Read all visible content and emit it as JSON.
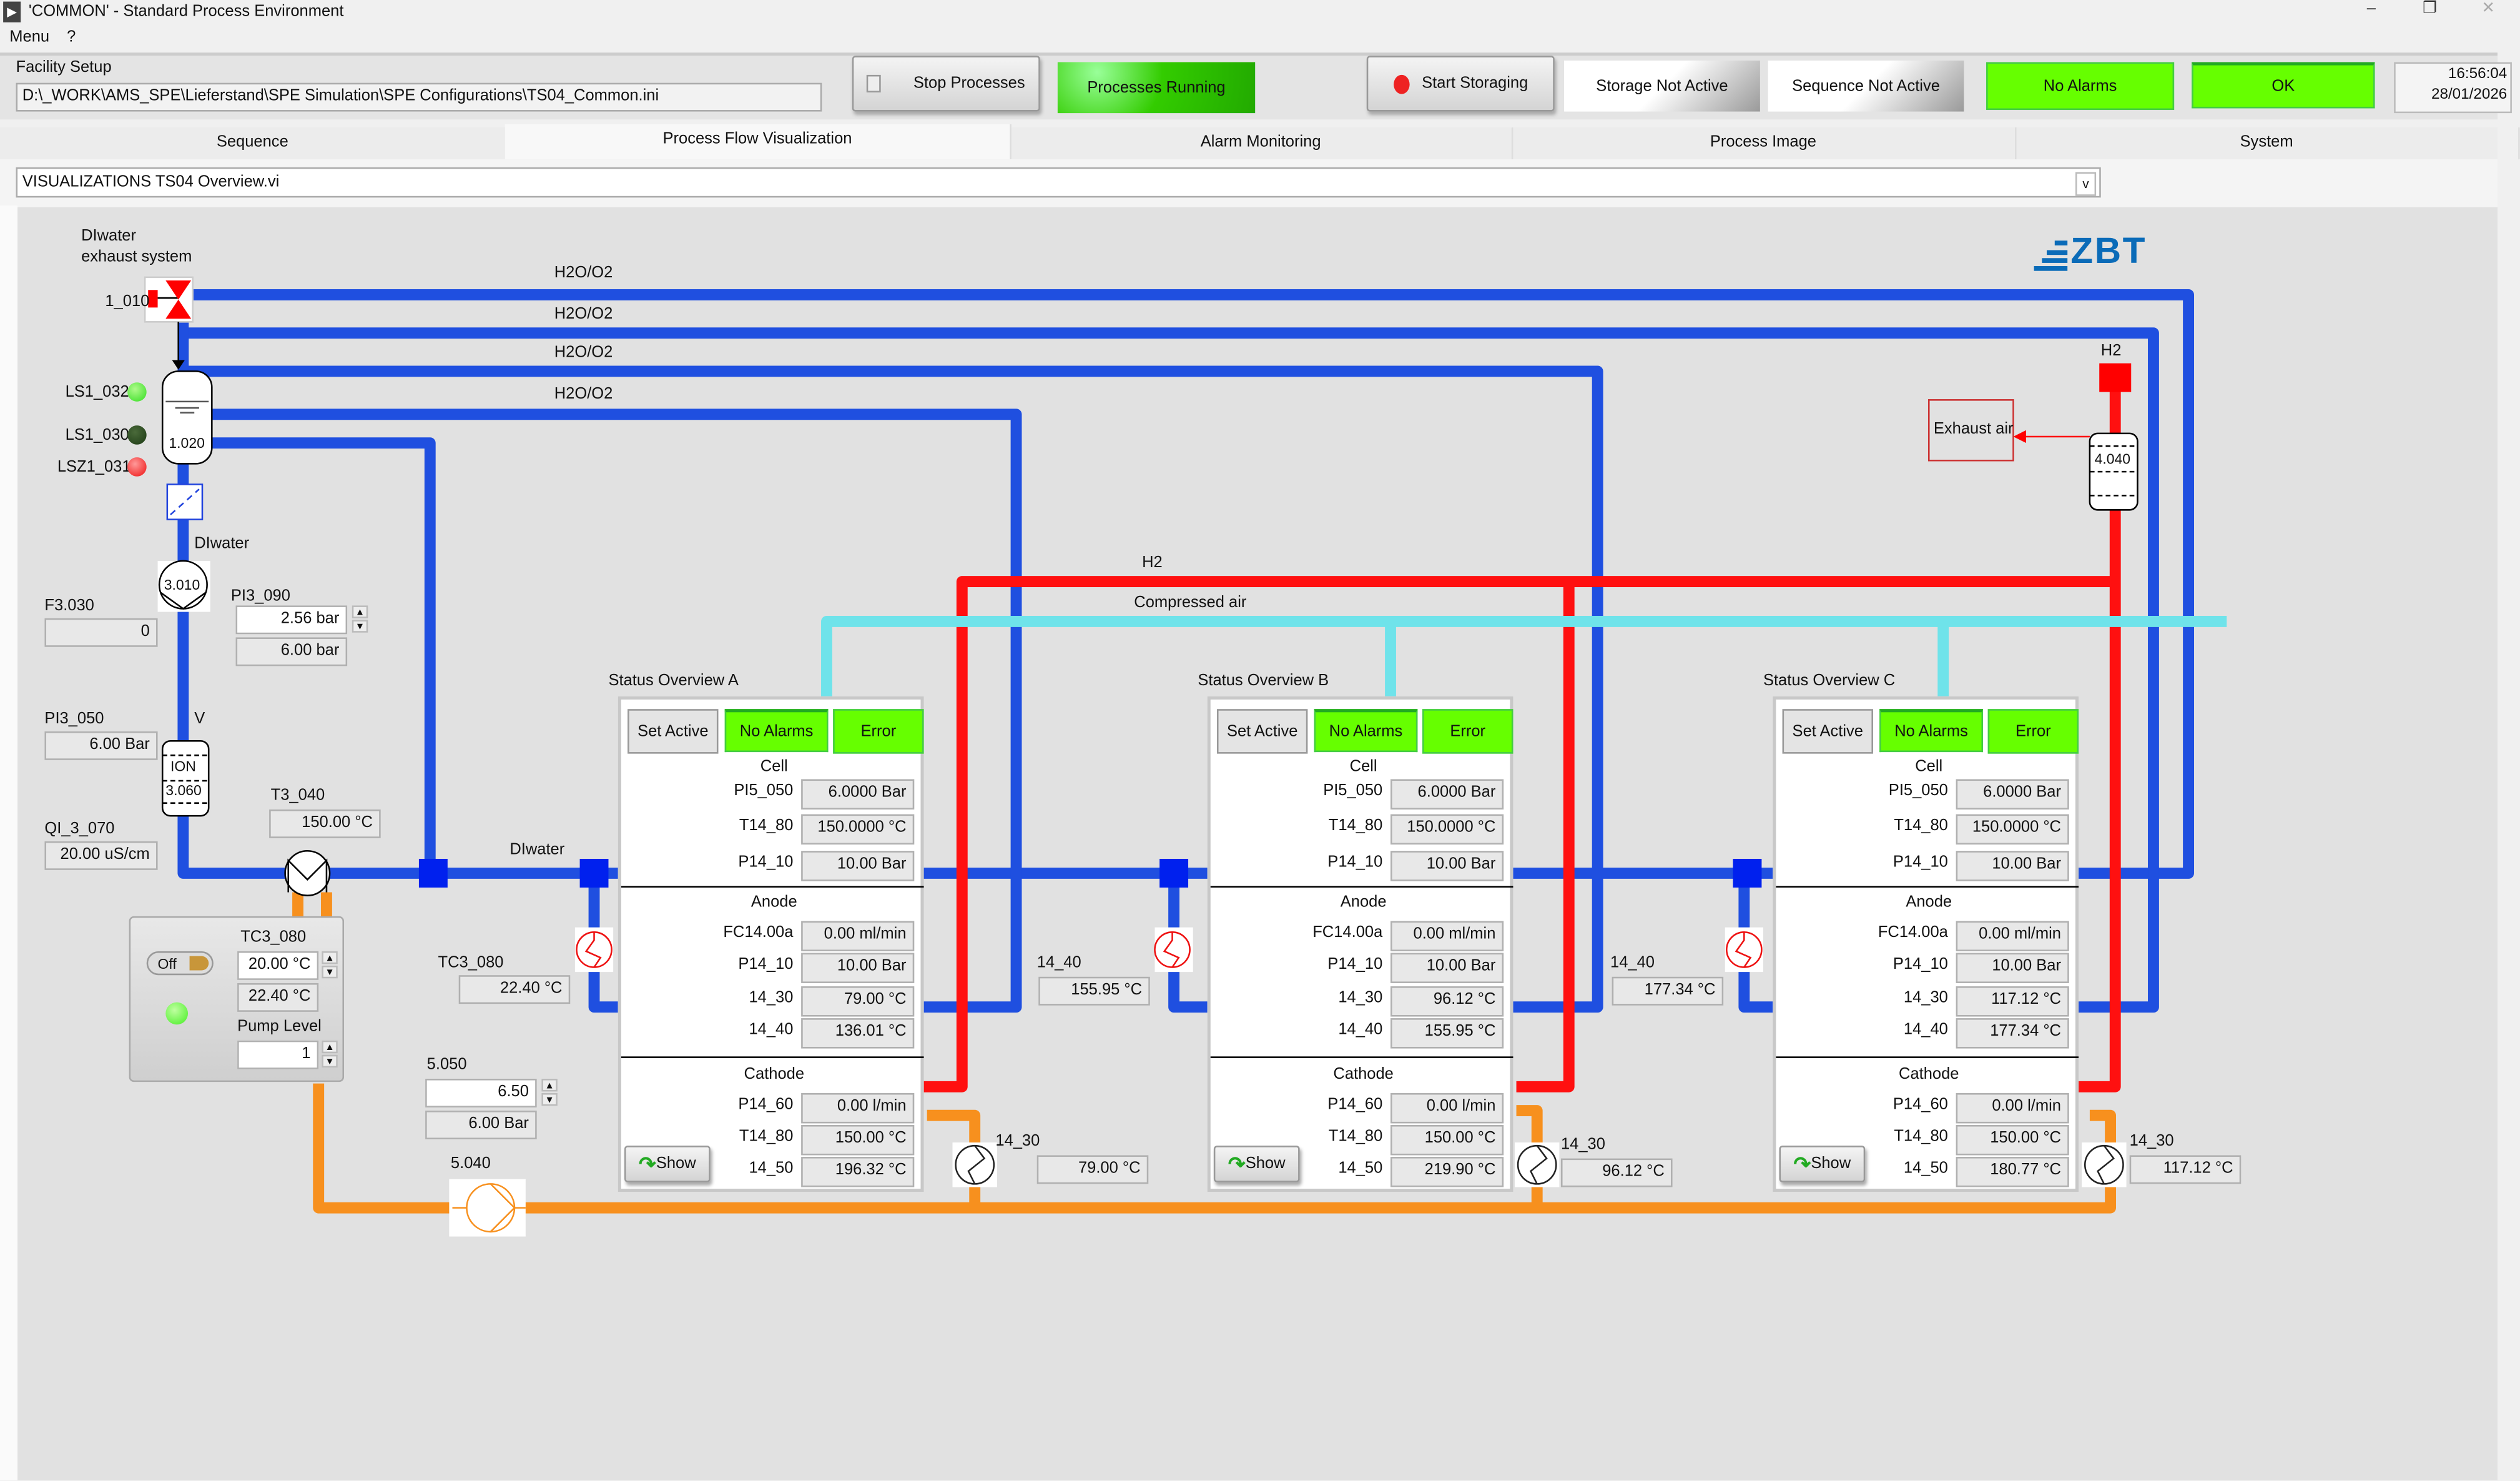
{
  "window": {
    "title": "'COMMON' - Standard Process Environment",
    "minimize": "–",
    "restore": "❐",
    "close": "✕"
  },
  "menu": {
    "items": [
      "Menu",
      "?"
    ]
  },
  "toolbar": {
    "facility_label": "Facility Setup",
    "facility_path": "D:\\_WORK\\AMS_SPE\\Lieferstand\\SPE Simulation\\SPE Configurations\\TS04_Common.ini",
    "stop_processes": "Stop Processes",
    "processes_running": "Processes Running",
    "start_storaging": "Start Storaging",
    "storage_status": "Storage Not Active",
    "sequence_status": "Sequence Not Active",
    "alarm_status": "No Alarms",
    "ok_status": "OK",
    "time": "16:56:04",
    "date": "28/01/2026",
    "status_green": "#66ff00"
  },
  "tabs": [
    "Sequence",
    "Process Flow Visualization",
    "Alarm Monitoring",
    "Process Image",
    "System"
  ],
  "active_tab": "Process Flow Visualization",
  "vi_selector": {
    "value": "VISUALIZATIONS TS04 Overview.vi"
  },
  "logo": "ZBT",
  "diagram": {
    "exhaust_system": [
      "DIwater",
      "exhaust system"
    ],
    "valve_1010": "1_010",
    "lines": {
      "h2o_o2": "H2O/O2",
      "h2": "H2",
      "compressed_air": "Compressed air",
      "diwater": "DIwater",
      "v": "V"
    },
    "tank_1020": "1.020",
    "leds": [
      {
        "label": "LS1_032",
        "color": "#33dd22"
      },
      {
        "label": "LS1_030",
        "color": "#1c3a14"
      },
      {
        "label": "LSZ1_031",
        "color": "#ee1111"
      }
    ],
    "pump_3010": "3.010",
    "ion_exchanger": [
      "ION",
      "3.060"
    ],
    "f3_030": {
      "label": "F3.030",
      "value": "0"
    },
    "pi3_090": {
      "label": "PI3_090",
      "setpoint": "2.56 bar",
      "value": "6.00 bar"
    },
    "pi3_050": {
      "label": "PI3_050",
      "value": "6.00 Bar"
    },
    "qi_3_070": {
      "label": "QI_3_070",
      "value": "20.00 uS/cm"
    },
    "t3_040": {
      "label": "T3_040",
      "value": "150.00 °C"
    },
    "chiller": {
      "switch": "Off",
      "tc3_080_label": "TC3_080",
      "setpoint": "20.00 °C",
      "value": "22.40 °C",
      "pump_level_label": "Pump Level",
      "pump_level": "1",
      "led_color": "#44ee22"
    },
    "tc3_080_display": {
      "label": "TC3_080",
      "value": "22.40 °C"
    },
    "p5_050": {
      "label": "5.050",
      "setpoint": "6.50",
      "value": "6.00 Bar"
    },
    "pump_5040": "5.040",
    "exhaust_air": "Exhaust air",
    "h2_source": "H2",
    "separator_4040": "4.040",
    "side_14_40": [
      {
        "label": "14_40",
        "value": "155.95 °C"
      },
      {
        "label": "14_40",
        "value": "177.34 °C"
      }
    ],
    "side_14_30": [
      {
        "label": "14_30",
        "value": "79.00 °C"
      },
      {
        "label": "14_30",
        "value": "96.12 °C"
      },
      {
        "label": "14_30",
        "value": "117.12 °C"
      }
    ],
    "pipe_colors": {
      "water": "#1f4fe0",
      "h2": "#ff1010",
      "air": "#6fe3ea",
      "coolant": "#f7901e"
    }
  },
  "status_panels": [
    {
      "title": "Status Overview A",
      "set_active": "Set Active",
      "alarm": "No Alarms",
      "error": "Error",
      "show": "Show",
      "cell": {
        "heading": "Cell",
        "rows": [
          [
            "PI5_050",
            "6.0000 Bar"
          ],
          [
            "T14_80",
            "150.0000 °C"
          ],
          [
            "P14_10",
            "10.00 Bar"
          ]
        ]
      },
      "anode": {
        "heading": "Anode",
        "rows": [
          [
            "FC14.00a",
            "0.00 ml/min"
          ],
          [
            "P14_10",
            "10.00 Bar"
          ],
          [
            "14_30",
            "79.00 °C"
          ],
          [
            "14_40",
            "136.01 °C"
          ]
        ]
      },
      "cathode": {
        "heading": "Cathode",
        "rows": [
          [
            "P14_60",
            "0.00 l/min"
          ],
          [
            "T14_80",
            "150.00 °C"
          ],
          [
            "14_50",
            "196.32 °C"
          ]
        ]
      }
    },
    {
      "title": "Status Overview B",
      "set_active": "Set Active",
      "alarm": "No Alarms",
      "error": "Error",
      "show": "Show",
      "cell": {
        "heading": "Cell",
        "rows": [
          [
            "PI5_050",
            "6.0000 Bar"
          ],
          [
            "T14_80",
            "150.0000 °C"
          ],
          [
            "P14_10",
            "10.00 Bar"
          ]
        ]
      },
      "anode": {
        "heading": "Anode",
        "rows": [
          [
            "FC14.00a",
            "0.00 ml/min"
          ],
          [
            "P14_10",
            "10.00 Bar"
          ],
          [
            "14_30",
            "96.12 °C"
          ],
          [
            "14_40",
            "155.95 °C"
          ]
        ]
      },
      "cathode": {
        "heading": "Cathode",
        "rows": [
          [
            "P14_60",
            "0.00 l/min"
          ],
          [
            "T14_80",
            "150.00 °C"
          ],
          [
            "14_50",
            "219.90 °C"
          ]
        ]
      }
    },
    {
      "title": "Status Overview C",
      "set_active": "Set Active",
      "alarm": "No Alarms",
      "error": "Error",
      "show": "Show",
      "cell": {
        "heading": "Cell",
        "rows": [
          [
            "PI5_050",
            "6.0000 Bar"
          ],
          [
            "T14_80",
            "150.0000 °C"
          ],
          [
            "P14_10",
            "10.00 Bar"
          ]
        ]
      },
      "anode": {
        "heading": "Anode",
        "rows": [
          [
            "FC14.00a",
            "0.00 ml/min"
          ],
          [
            "P14_10",
            "10.00 Bar"
          ],
          [
            "14_30",
            "117.12 °C"
          ],
          [
            "14_40",
            "177.34 °C"
          ]
        ]
      },
      "cathode": {
        "heading": "Cathode",
        "rows": [
          [
            "P14_60",
            "0.00 l/min"
          ],
          [
            "T14_80",
            "150.00 °C"
          ],
          [
            "14_50",
            "180.77 °C"
          ]
        ]
      }
    }
  ]
}
